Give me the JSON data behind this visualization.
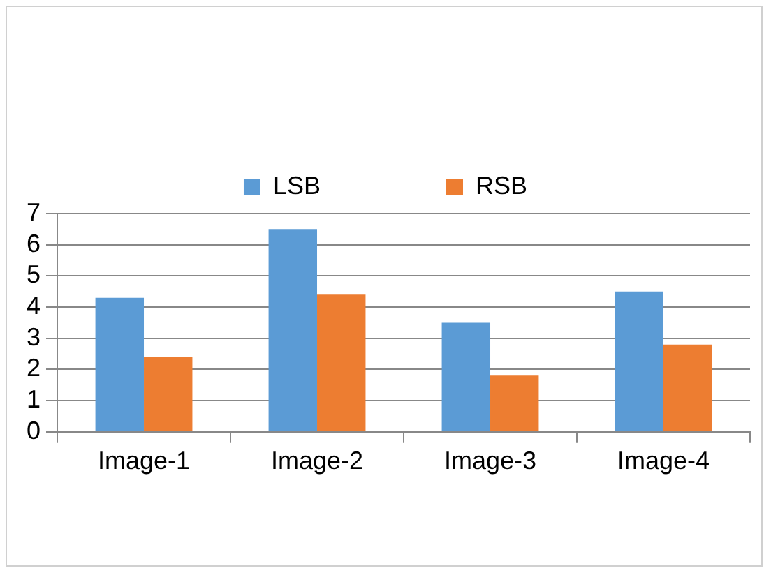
{
  "chart_data": {
    "type": "bar",
    "categories": [
      "Image-1",
      "Image-2",
      "Image-3",
      "Image-4"
    ],
    "series": [
      {
        "name": "LSB",
        "color": "#5b9bd5",
        "values": [
          4.3,
          6.5,
          3.5,
          4.5
        ]
      },
      {
        "name": "RSB",
        "color": "#ed7d31",
        "values": [
          2.4,
          4.4,
          1.8,
          2.8
        ]
      }
    ],
    "ylim": [
      0,
      7
    ],
    "yticks": [
      0,
      1,
      2,
      3,
      4,
      5,
      6,
      7
    ],
    "grid": "y",
    "legend": "top"
  }
}
